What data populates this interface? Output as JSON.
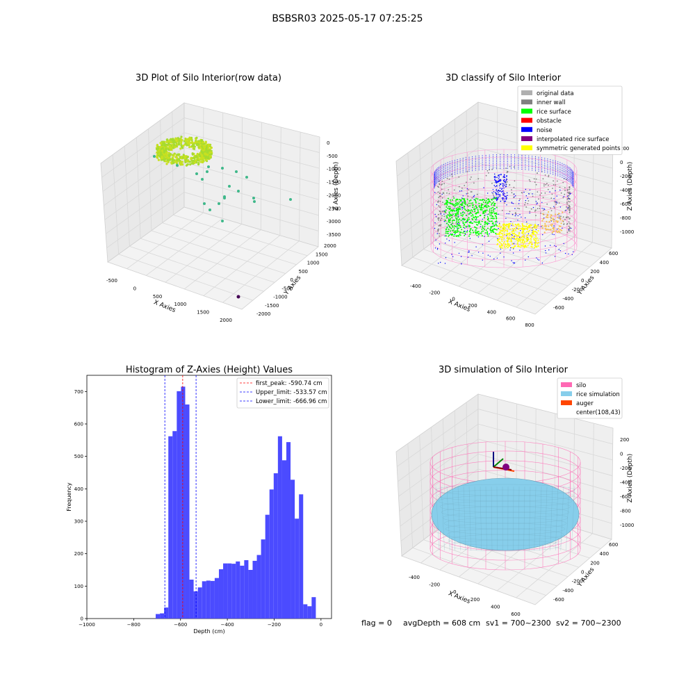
{
  "suptitle": "BSBSR03 2025-05-17 07:25:25",
  "status_line": {
    "flag": "flag = 0",
    "avg_depth": "avgDepth = 608 cm",
    "sv1": "sv1 = 700~2300",
    "sv2": "sv2 = 700~2300"
  },
  "chart_data": [
    {
      "type": "scatter",
      "projection": "3d",
      "title": "3D Plot of Silo Interior(row data)",
      "xlabel": "X Axies",
      "ylabel": "Y Axies",
      "zlabel": "Z Axies (Depth)",
      "x_ticks": [
        "-500",
        "0",
        "500",
        "1000",
        "1500",
        "2000"
      ],
      "y_ticks": [
        "2000",
        "1500",
        "1000",
        "500",
        "0",
        "-500",
        "-1000",
        "-1500",
        "-2000"
      ],
      "z_ticks": [
        "0",
        "-500",
        "-1000",
        "-1500",
        "-2000",
        "-2500",
        "-3000",
        "-3500"
      ],
      "grid": true,
      "colors": {
        "dense": "#c8e020",
        "sparse": "#3fb88a",
        "outlier": "#440154"
      }
    },
    {
      "type": "scatter",
      "projection": "3d",
      "title": "3D classify of Silo Interior",
      "xlabel": "X Axies",
      "ylabel": "Y Axies",
      "zlabel": "Z Axies (Depth)",
      "x_ticks": [
        "-400",
        "-200",
        "0",
        "200",
        "400",
        "600",
        "800"
      ],
      "y_ticks": [
        "600",
        "400",
        "200",
        "0",
        "-200",
        "-400",
        "-600"
      ],
      "z_ticks": [
        "200",
        "0",
        "-200",
        "-400",
        "-600",
        "-800",
        "-1000"
      ],
      "legend_position": "top-right",
      "legend": [
        {
          "label": "original data",
          "color": "#b0b0b0"
        },
        {
          "label": "inner wall",
          "color": "#808080"
        },
        {
          "label": "rice surface",
          "color": "#00ff00"
        },
        {
          "label": "obstacle",
          "color": "#ff0000"
        },
        {
          "label": "noise",
          "color": "#0000ff"
        },
        {
          "label": "interpolated rice surface",
          "color": "#800080"
        },
        {
          "label": "symmetric generated points",
          "color": "#ffff00"
        }
      ],
      "silo_color": "#ff88cc",
      "grid": true
    },
    {
      "type": "bar",
      "title": "Histogram of Z-Axies (Height) Values",
      "xlabel": "Depth (cm)",
      "ylabel": "Frequency",
      "xlim": [
        -1000,
        45
      ],
      "ylim": [
        0,
        750
      ],
      "x_ticks": [
        -1000,
        -800,
        -600,
        -400,
        -200,
        0
      ],
      "y_ticks": [
        0,
        100,
        200,
        300,
        400,
        500,
        600,
        700
      ],
      "bin_width": 18,
      "bin_start": -706,
      "values": [
        14,
        16,
        34,
        562,
        578,
        701,
        715,
        660,
        120,
        84,
        96,
        115,
        117,
        116,
        125,
        152,
        170,
        170,
        169,
        176,
        163,
        180,
        150,
        178,
        196,
        244,
        320,
        398,
        448,
        562,
        488,
        544,
        428,
        308,
        383,
        44,
        38,
        66
      ],
      "bar_color": "#4b4bff",
      "lines": [
        {
          "label": "first_peak: -590.74 cm",
          "x": -590.74,
          "color": "#ff0000",
          "style": "dashed"
        },
        {
          "label": "Upper_limit: -533.57 cm",
          "x": -533.57,
          "color": "#0000ff",
          "style": "dashed"
        },
        {
          "label": "Lower_limit: -666.96 cm",
          "x": -666.96,
          "color": "#0000ff",
          "style": "dashed"
        }
      ],
      "legend_position": "top-right"
    },
    {
      "type": "scatter",
      "projection": "3d",
      "title": "3D simulation of Silo Interior",
      "xlabel": "X Axies",
      "ylabel": "Y Axies",
      "zlabel": "Z Axies (Depth)",
      "x_ticks": [
        "-400",
        "-200",
        "0",
        "200",
        "400",
        "600"
      ],
      "y_ticks": [
        "600",
        "400",
        "200",
        "0",
        "-200",
        "-400",
        "-600"
      ],
      "z_ticks": [
        "200",
        "0",
        "-200",
        "-400",
        "-600",
        "-800",
        "-1000"
      ],
      "legend_position": "top-right",
      "legend": [
        {
          "label": "silo",
          "color": "#ff69b4"
        },
        {
          "label": "rice simulation",
          "color": "#87ceeb"
        },
        {
          "label": "auger",
          "color": "#ff4500"
        },
        {
          "label": "center(108,43)",
          "color": "none"
        }
      ],
      "grid": true
    }
  ]
}
